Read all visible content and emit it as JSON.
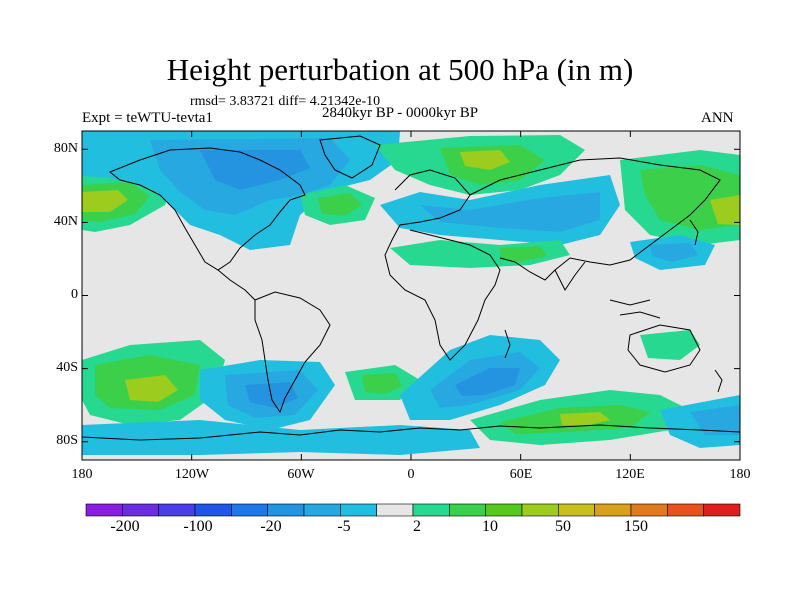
{
  "title": "Height perturbation at 500 hPa (in m)",
  "stats": "rmsd= 3.83721 diff= 4.21342e-10",
  "subtitle": "2840kyr BP - 0000kyr BP",
  "experiment": "Expt = teWTU-tevta1",
  "season": "ANN",
  "axes": {
    "lat_labels": [
      "80N",
      "40N",
      "0",
      "40S",
      "80S"
    ],
    "lat_values": [
      80,
      40,
      0,
      -40,
      -80
    ],
    "lon_labels": [
      "180",
      "120W",
      "60W",
      "0",
      "60E",
      "120E",
      "180"
    ],
    "lon_values": [
      -180,
      -120,
      -60,
      0,
      60,
      120,
      180
    ]
  },
  "colorbar": {
    "labels": [
      "-200",
      "-100",
      "-20",
      "-5",
      "2",
      "10",
      "50",
      "150"
    ],
    "colors": [
      "#8a1ee0",
      "#6a2ee0",
      "#4a3ee8",
      "#1f55e8",
      "#1f78e8",
      "#2494e0",
      "#27a8e0",
      "#22bee0",
      "#e6e6e6",
      "#27d890",
      "#3cd04a",
      "#55c81e",
      "#9ccd1e",
      "#c8c01e",
      "#d8a01e",
      "#e07a1e",
      "#e8501e",
      "#e01e1e"
    ]
  },
  "map_colors": {
    "neutral": "#e6e6e6",
    "neg_light": "#22bee0",
    "neg_mid": "#27a8e0",
    "neg_strong": "#2494e0",
    "pos_light": "#27d890",
    "pos_mid": "#3cd04a",
    "pos_strong": "#9ccd1e",
    "pos_peak": "#c8c01e"
  }
}
